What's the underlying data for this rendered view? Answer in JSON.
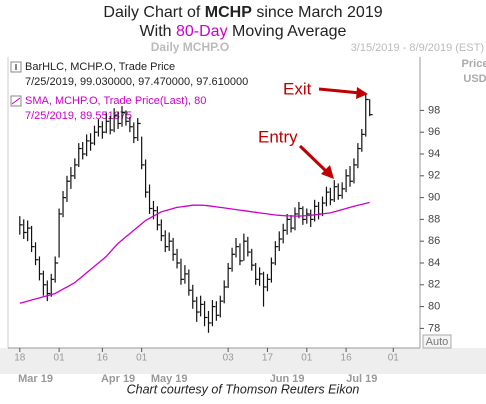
{
  "chart_data": {
    "type": "hlc",
    "title": {
      "prefix": "Daily Chart of ",
      "ticker": "MCHP",
      "suffix": " since March 2019"
    },
    "subtitle": {
      "prefix": "With ",
      "highlight": "80-Day",
      "suffix": " Moving Average"
    },
    "header": {
      "symbol": "Daily MCHP.O",
      "range": "3/15/2019 - 8/9/2019 (EST)"
    },
    "axis_label": [
      "Price",
      "USD"
    ],
    "legend": [
      "BarHLC, MCHP.O, Trade Price",
      "7/25/2019, 99.030000, 97.470000, 97.610000",
      "SMA, MCHP.O, Trade Price(Last), 80",
      "7/25/2019, 89.551875"
    ],
    "annotations": {
      "exit": "Exit",
      "entry": "Entry"
    },
    "button": "Auto",
    "credit": "Chart courtesy of Thomson Reuters Eikon",
    "bar_color": "#111111",
    "sma_color": "#cc00cc",
    "bars": [
      [
        88.3,
        86.6,
        87.5
      ],
      [
        88.0,
        86.2,
        86.8
      ],
      [
        87.9,
        86.0,
        87.2
      ],
      [
        87.4,
        85.0,
        85.5
      ],
      [
        85.9,
        83.8,
        84.3
      ],
      [
        84.6,
        82.4,
        83.0
      ],
      [
        83.3,
        81.0,
        82.0
      ],
      [
        82.4,
        80.5,
        81.2
      ],
      [
        83.0,
        80.9,
        82.5
      ],
      [
        84.6,
        82.2,
        84.0
      ],
      [
        89.0,
        84.5,
        88.5
      ],
      [
        90.6,
        88.2,
        90.0
      ],
      [
        92.0,
        89.6,
        91.5
      ],
      [
        92.8,
        90.8,
        92.0
      ],
      [
        93.6,
        91.7,
        93.0
      ],
      [
        95.0,
        92.8,
        94.5
      ],
      [
        95.1,
        93.5,
        94.0
      ],
      [
        95.8,
        93.8,
        95.2
      ],
      [
        95.9,
        94.3,
        95.0
      ],
      [
        96.6,
        94.8,
        96.0
      ],
      [
        97.2,
        95.6,
        96.5
      ],
      [
        97.0,
        95.4,
        96.0
      ],
      [
        97.8,
        95.9,
        97.0
      ],
      [
        97.5,
        95.8,
        96.2
      ],
      [
        98.2,
        96.0,
        97.5
      ],
      [
        97.9,
        96.3,
        96.8
      ],
      [
        98.4,
        96.5,
        97.8
      ],
      [
        98.0,
        96.6,
        97.0
      ],
      [
        97.4,
        96.0,
        96.5
      ],
      [
        96.9,
        95.0,
        95.5
      ],
      [
        97.3,
        95.2,
        96.8
      ],
      [
        95.6,
        92.6,
        93.0
      ],
      [
        93.5,
        90.0,
        90.5
      ],
      [
        91.2,
        88.5,
        89.0
      ],
      [
        89.7,
        88.0,
        88.8
      ],
      [
        89.2,
        87.0,
        87.5
      ],
      [
        88.0,
        86.0,
        86.5
      ],
      [
        87.0,
        85.0,
        85.5
      ],
      [
        86.8,
        85.1,
        86.0
      ],
      [
        86.3,
        84.2,
        84.8
      ],
      [
        85.3,
        83.5,
        84.0
      ],
      [
        84.4,
        82.0,
        82.5
      ],
      [
        83.8,
        82.1,
        83.0
      ],
      [
        83.4,
        81.0,
        81.5
      ],
      [
        82.0,
        79.8,
        80.5
      ],
      [
        80.9,
        78.6,
        79.5
      ],
      [
        81.0,
        79.1,
        80.2
      ],
      [
        80.5,
        78.2,
        79.0
      ],
      [
        79.6,
        77.6,
        78.5
      ],
      [
        80.6,
        78.2,
        80.0
      ],
      [
        80.5,
        78.7,
        79.2
      ],
      [
        81.0,
        79.0,
        80.5
      ],
      [
        82.4,
        80.3,
        81.8
      ],
      [
        84.0,
        81.7,
        83.5
      ],
      [
        85.4,
        83.2,
        84.8
      ],
      [
        86.3,
        84.5,
        85.5
      ],
      [
        85.8,
        83.8,
        84.2
      ],
      [
        86.7,
        84.2,
        86.0
      ],
      [
        86.4,
        84.6,
        85.0
      ],
      [
        85.3,
        83.3,
        83.8
      ],
      [
        84.0,
        82.0,
        82.5
      ],
      [
        83.6,
        81.9,
        83.0
      ],
      [
        83.2,
        80.0,
        81.8
      ],
      [
        83.0,
        81.4,
        82.5
      ],
      [
        84.5,
        82.2,
        84.0
      ],
      [
        86.0,
        83.8,
        85.5
      ],
      [
        86.9,
        85.1,
        86.2
      ],
      [
        87.6,
        85.8,
        87.0
      ],
      [
        88.5,
        86.6,
        88.0
      ],
      [
        88.4,
        86.8,
        87.2
      ],
      [
        89.1,
        87.0,
        88.5
      ],
      [
        89.6,
        88.1,
        89.0
      ],
      [
        89.2,
        87.5,
        88.0
      ],
      [
        89.0,
        87.6,
        88.5
      ],
      [
        88.9,
        87.3,
        88.0
      ],
      [
        89.8,
        87.8,
        89.2
      ],
      [
        89.6,
        88.0,
        88.5
      ],
      [
        90.1,
        88.3,
        89.5
      ],
      [
        91.0,
        89.2,
        90.5
      ],
      [
        90.9,
        89.3,
        89.8
      ],
      [
        91.6,
        89.6,
        91.0
      ],
      [
        91.3,
        89.8,
        90.2
      ],
      [
        91.4,
        89.9,
        90.8
      ],
      [
        92.6,
        90.5,
        92.0
      ],
      [
        92.9,
        91.0,
        91.5
      ],
      [
        93.6,
        91.3,
        93.0
      ],
      [
        95.0,
        92.7,
        94.5
      ],
      [
        96.3,
        94.2,
        95.8
      ],
      [
        99.5,
        95.6,
        99.0
      ],
      [
        99.03,
        97.47,
        97.61
      ]
    ],
    "sma": [
      80.3,
      80.4,
      80.5,
      80.6,
      80.7,
      80.8,
      80.9,
      81.0,
      81.1,
      81.2,
      81.4,
      81.6,
      81.8,
      82.0,
      82.2,
      82.5,
      82.8,
      83.1,
      83.4,
      83.7,
      84.0,
      84.3,
      84.6,
      85.0,
      85.4,
      85.8,
      86.1,
      86.4,
      86.7,
      87.0,
      87.3,
      87.6,
      87.9,
      88.1,
      88.3,
      88.5,
      88.7,
      88.8,
      88.9,
      89.0,
      89.1,
      89.15,
      89.2,
      89.25,
      89.3,
      89.3,
      89.3,
      89.28,
      89.25,
      89.2,
      89.15,
      89.1,
      89.05,
      89.0,
      88.95,
      88.9,
      88.85,
      88.8,
      88.75,
      88.7,
      88.65,
      88.6,
      88.55,
      88.5,
      88.45,
      88.4,
      88.38,
      88.35,
      88.33,
      88.32,
      88.3,
      88.3,
      88.32,
      88.35,
      88.38,
      88.42,
      88.46,
      88.5,
      88.55,
      88.6,
      88.7,
      88.8,
      88.9,
      89.0,
      89.1,
      89.2,
      89.3,
      89.38,
      89.47,
      89.551875
    ],
    "xlim": [
      -3,
      101.8
    ],
    "ylim": [
      76.2,
      102.9
    ],
    "yticks": [
      78,
      80,
      82,
      84,
      86,
      88,
      90,
      92,
      94,
      96,
      98
    ],
    "xticks": [
      {
        "value": 0,
        "label": "18"
      },
      {
        "value": 10,
        "label": "01"
      },
      {
        "value": 21,
        "label": "16"
      },
      {
        "value": 31,
        "label": "01"
      },
      {
        "value": 53,
        "label": "03"
      },
      {
        "value": 63,
        "label": "17"
      },
      {
        "value": 73,
        "label": "01"
      },
      {
        "value": 83,
        "label": "16"
      },
      {
        "value": 95,
        "label": "01"
      }
    ],
    "month_ticks": [
      {
        "value": 4,
        "label": "Mar 19"
      },
      {
        "value": 25,
        "label": "Apr 19"
      },
      {
        "value": 38,
        "label": "May 19"
      },
      {
        "value": 68,
        "label": "Jun 19"
      },
      {
        "value": 87,
        "label": "Jul 19"
      }
    ]
  }
}
